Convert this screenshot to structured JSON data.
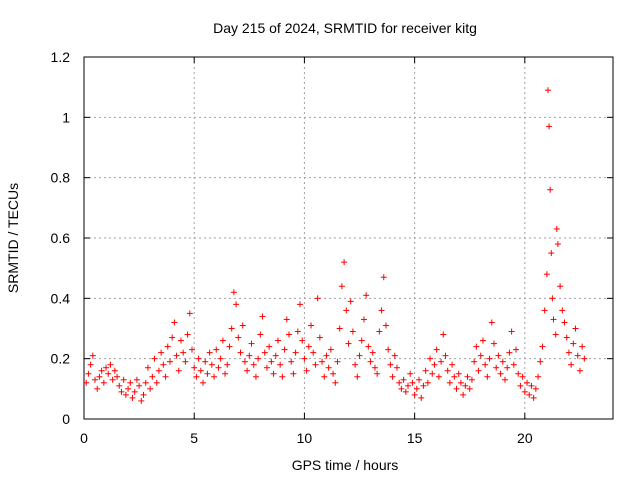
{
  "chart_data": {
    "type": "scatter",
    "title": "Day 215 of 2024, SRMTID for receiver kitg",
    "xlabel": "GPS time / hours",
    "ylabel": "SRMTID / TECUs",
    "xlim": [
      0,
      24
    ],
    "ylim": [
      0,
      1.2
    ],
    "xticks": [
      0,
      5,
      10,
      15,
      20
    ],
    "xtick_labels": [
      "0",
      "5",
      "10",
      "15",
      "20"
    ],
    "yticks": [
      0,
      0.2,
      0.4,
      0.6,
      0.8,
      1.0,
      1.2
    ],
    "ytick_labels": [
      "0",
      "0.2",
      "0.4",
      "0.6",
      "0.8",
      "1",
      "1.2"
    ],
    "grid": true,
    "marker": "+",
    "color": "#ff0000",
    "series": [
      {
        "name": "SRMTID",
        "points": [
          [
            0.1,
            0.12
          ],
          [
            0.2,
            0.15
          ],
          [
            0.3,
            0.18
          ],
          [
            0.4,
            0.21
          ],
          [
            0.5,
            0.13
          ],
          [
            0.6,
            0.1
          ],
          [
            0.7,
            0.14
          ],
          [
            0.8,
            0.16
          ],
          [
            0.9,
            0.12
          ],
          [
            1.0,
            0.17
          ],
          [
            1.1,
            0.15
          ],
          [
            1.2,
            0.18
          ],
          [
            1.3,
            0.13
          ],
          [
            1.4,
            0.16
          ],
          [
            1.5,
            0.14
          ],
          [
            1.6,
            0.11
          ],
          [
            1.7,
            0.09
          ],
          [
            1.8,
            0.13
          ],
          [
            1.9,
            0.08
          ],
          [
            2.0,
            0.1
          ],
          [
            2.1,
            0.12
          ],
          [
            2.2,
            0.07
          ],
          [
            2.3,
            0.09
          ],
          [
            2.4,
            0.13
          ],
          [
            2.5,
            0.11
          ],
          [
            2.6,
            0.06
          ],
          [
            2.7,
            0.08
          ],
          [
            2.8,
            0.12
          ],
          [
            2.9,
            0.17
          ],
          [
            3.0,
            0.1
          ],
          [
            3.1,
            0.14
          ],
          [
            3.2,
            0.2
          ],
          [
            3.3,
            0.12
          ],
          [
            3.4,
            0.16
          ],
          [
            3.5,
            0.22
          ],
          [
            3.6,
            0.18
          ],
          [
            3.7,
            0.14
          ],
          [
            3.8,
            0.24
          ],
          [
            3.9,
            0.19
          ],
          [
            4.0,
            0.27
          ],
          [
            4.1,
            0.32
          ],
          [
            4.2,
            0.21
          ],
          [
            4.3,
            0.16
          ],
          [
            4.4,
            0.26
          ],
          [
            4.5,
            0.22
          ],
          [
            4.6,
            0.19
          ],
          [
            4.7,
            0.28
          ],
          [
            4.8,
            0.35
          ],
          [
            4.9,
            0.23
          ],
          [
            5.0,
            0.17
          ],
          [
            5.1,
            0.14
          ],
          [
            5.2,
            0.2
          ],
          [
            5.3,
            0.16
          ],
          [
            5.4,
            0.12
          ],
          [
            5.5,
            0.19
          ],
          [
            5.6,
            0.15
          ],
          [
            5.7,
            0.22
          ],
          [
            5.8,
            0.18
          ],
          [
            5.9,
            0.14
          ],
          [
            6.0,
            0.23
          ],
          [
            6.1,
            0.17
          ],
          [
            6.2,
            0.2
          ],
          [
            6.3,
            0.26
          ],
          [
            6.4,
            0.15
          ],
          [
            6.5,
            0.18
          ],
          [
            6.6,
            0.24
          ],
          [
            6.7,
            0.3
          ],
          [
            6.8,
            0.42
          ],
          [
            6.9,
            0.38
          ],
          [
            7.0,
            0.27
          ],
          [
            7.1,
            0.22
          ],
          [
            7.2,
            0.31
          ],
          [
            7.3,
            0.19
          ],
          [
            7.4,
            0.16
          ],
          [
            7.5,
            0.21
          ],
          [
            7.6,
            0.25
          ],
          [
            7.7,
            0.18
          ],
          [
            7.8,
            0.14
          ],
          [
            7.9,
            0.2
          ],
          [
            8.0,
            0.28
          ],
          [
            8.1,
            0.34
          ],
          [
            8.2,
            0.22
          ],
          [
            8.3,
            0.17
          ],
          [
            8.4,
            0.24
          ],
          [
            8.5,
            0.19
          ],
          [
            8.6,
            0.15
          ],
          [
            8.7,
            0.21
          ],
          [
            8.8,
            0.26
          ],
          [
            8.9,
            0.18
          ],
          [
            9.0,
            0.14
          ],
          [
            9.1,
            0.23
          ],
          [
            9.2,
            0.33
          ],
          [
            9.3,
            0.28
          ],
          [
            9.4,
            0.19
          ],
          [
            9.5,
            0.15
          ],
          [
            9.6,
            0.22
          ],
          [
            9.7,
            0.29
          ],
          [
            9.8,
            0.38
          ],
          [
            9.9,
            0.26
          ],
          [
            10.0,
            0.2
          ],
          [
            10.1,
            0.16
          ],
          [
            10.2,
            0.24
          ],
          [
            10.3,
            0.31
          ],
          [
            10.4,
            0.22
          ],
          [
            10.5,
            0.18
          ],
          [
            10.6,
            0.4
          ],
          [
            10.7,
            0.27
          ],
          [
            10.8,
            0.19
          ],
          [
            10.9,
            0.14
          ],
          [
            11.0,
            0.21
          ],
          [
            11.1,
            0.17
          ],
          [
            11.2,
            0.23
          ],
          [
            11.3,
            0.15
          ],
          [
            11.4,
            0.12
          ],
          [
            11.5,
            0.19
          ],
          [
            11.6,
            0.3
          ],
          [
            11.7,
            0.44
          ],
          [
            11.8,
            0.52
          ],
          [
            11.9,
            0.36
          ],
          [
            12.0,
            0.25
          ],
          [
            12.1,
            0.39
          ],
          [
            12.2,
            0.29
          ],
          [
            12.3,
            0.18
          ],
          [
            12.4,
            0.14
          ],
          [
            12.5,
            0.21
          ],
          [
            12.6,
            0.26
          ],
          [
            12.7,
            0.33
          ],
          [
            12.8,
            0.41
          ],
          [
            12.9,
            0.24
          ],
          [
            13.0,
            0.19
          ],
          [
            13.1,
            0.22
          ],
          [
            13.2,
            0.17
          ],
          [
            13.3,
            0.15
          ],
          [
            13.4,
            0.29
          ],
          [
            13.5,
            0.36
          ],
          [
            13.6,
            0.47
          ],
          [
            13.7,
            0.31
          ],
          [
            13.8,
            0.23
          ],
          [
            13.9,
            0.18
          ],
          [
            14.0,
            0.14
          ],
          [
            14.1,
            0.21
          ],
          [
            14.2,
            0.17
          ],
          [
            14.3,
            0.12
          ],
          [
            14.4,
            0.1
          ],
          [
            14.5,
            0.13
          ],
          [
            14.6,
            0.09
          ],
          [
            14.7,
            0.11
          ],
          [
            14.8,
            0.15
          ],
          [
            14.9,
            0.12
          ],
          [
            15.0,
            0.08
          ],
          [
            15.1,
            0.1
          ],
          [
            15.2,
            0.13
          ],
          [
            15.3,
            0.07
          ],
          [
            15.4,
            0.11
          ],
          [
            15.5,
            0.16
          ],
          [
            15.6,
            0.12
          ],
          [
            15.7,
            0.2
          ],
          [
            15.8,
            0.15
          ],
          [
            15.9,
            0.18
          ],
          [
            16.0,
            0.23
          ],
          [
            16.1,
            0.14
          ],
          [
            16.2,
            0.19
          ],
          [
            16.3,
            0.28
          ],
          [
            16.4,
            0.21
          ],
          [
            16.5,
            0.16
          ],
          [
            16.6,
            0.12
          ],
          [
            16.7,
            0.18
          ],
          [
            16.8,
            0.14
          ],
          [
            16.9,
            0.1
          ],
          [
            17.0,
            0.15
          ],
          [
            17.1,
            0.12
          ],
          [
            17.2,
            0.08
          ],
          [
            17.3,
            0.11
          ],
          [
            17.4,
            0.14
          ],
          [
            17.5,
            0.1
          ],
          [
            17.6,
            0.13
          ],
          [
            17.7,
            0.19
          ],
          [
            17.8,
            0.24
          ],
          [
            17.9,
            0.16
          ],
          [
            18.0,
            0.21
          ],
          [
            18.1,
            0.26
          ],
          [
            18.2,
            0.18
          ],
          [
            18.3,
            0.14
          ],
          [
            18.4,
            0.2
          ],
          [
            18.5,
            0.32
          ],
          [
            18.6,
            0.25
          ],
          [
            18.7,
            0.17
          ],
          [
            18.8,
            0.21
          ],
          [
            18.9,
            0.15
          ],
          [
            19.0,
            0.19
          ],
          [
            19.1,
            0.13
          ],
          [
            19.2,
            0.17
          ],
          [
            19.3,
            0.22
          ],
          [
            19.4,
            0.29
          ],
          [
            19.5,
            0.18
          ],
          [
            19.6,
            0.23
          ],
          [
            19.7,
            0.15
          ],
          [
            19.8,
            0.11
          ],
          [
            19.9,
            0.14
          ],
          [
            20.0,
            0.09
          ],
          [
            20.1,
            0.12
          ],
          [
            20.2,
            0.08
          ],
          [
            20.3,
            0.11
          ],
          [
            20.4,
            0.07
          ],
          [
            20.5,
            0.1
          ],
          [
            20.6,
            0.14
          ],
          [
            20.7,
            0.19
          ],
          [
            20.8,
            0.24
          ],
          [
            20.9,
            0.36
          ],
          [
            21.0,
            0.48
          ],
          [
            21.05,
            1.09
          ],
          [
            21.1,
            0.97
          ],
          [
            21.15,
            0.76
          ],
          [
            21.2,
            0.55
          ],
          [
            21.25,
            0.4
          ],
          [
            21.3,
            0.33
          ],
          [
            21.4,
            0.28
          ],
          [
            21.45,
            0.63
          ],
          [
            21.5,
            0.58
          ],
          [
            21.6,
            0.44
          ],
          [
            21.7,
            0.36
          ],
          [
            21.8,
            0.32
          ],
          [
            21.9,
            0.27
          ],
          [
            22.0,
            0.22
          ],
          [
            22.1,
            0.18
          ],
          [
            22.2,
            0.25
          ],
          [
            22.3,
            0.3
          ],
          [
            22.4,
            0.21
          ],
          [
            22.5,
            0.16
          ],
          [
            22.6,
            0.24
          ],
          [
            22.7,
            0.2
          ]
        ]
      }
    ]
  }
}
